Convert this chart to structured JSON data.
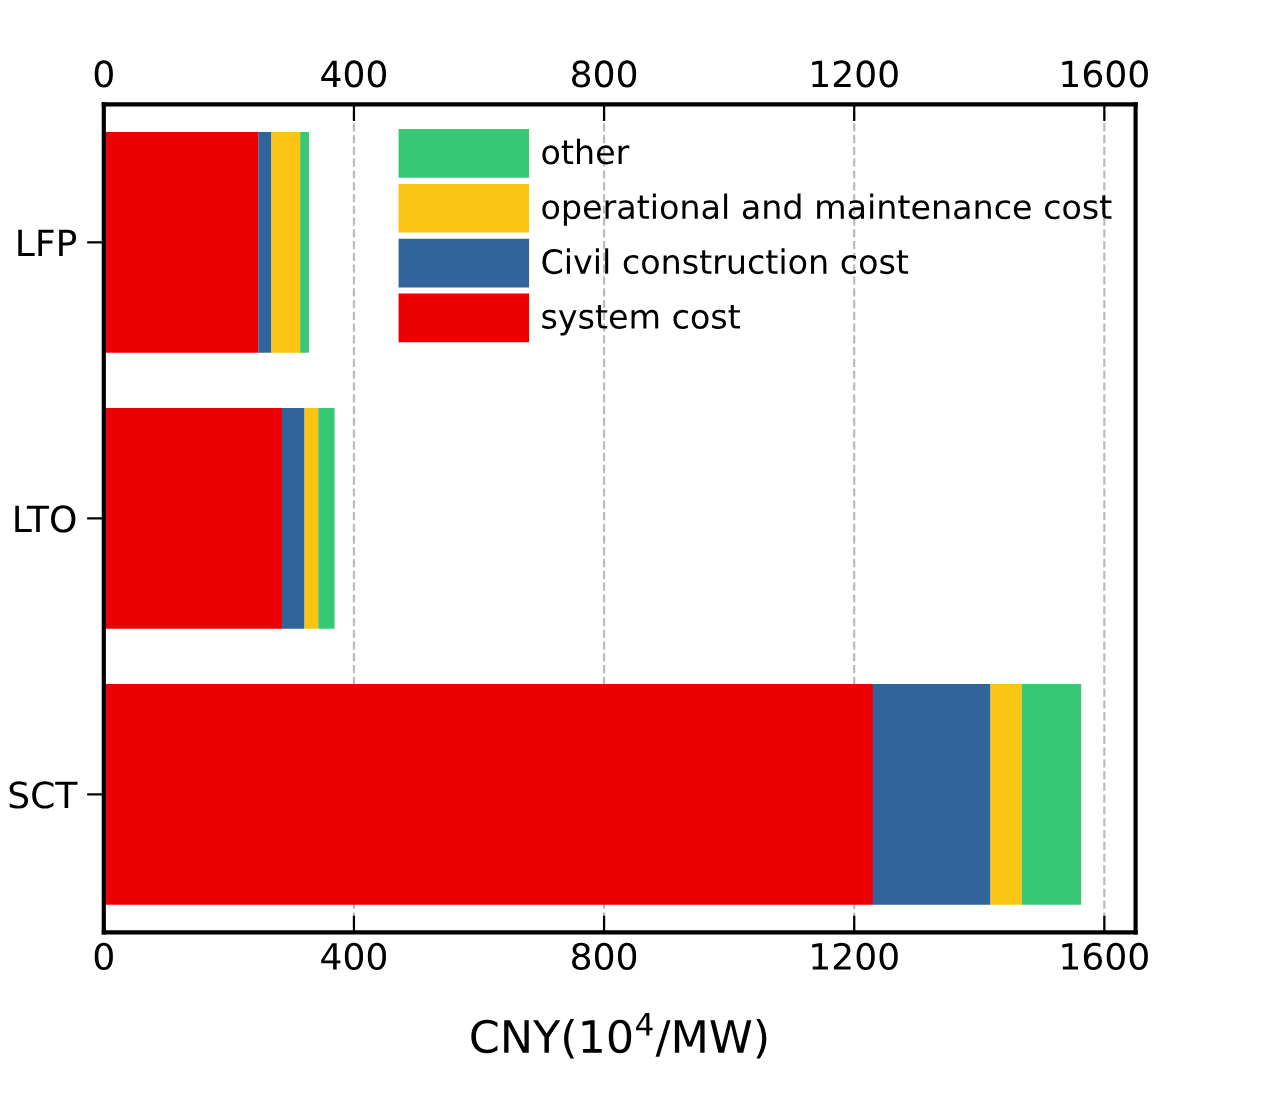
{
  "chart_data": {
    "type": "bar",
    "orientation": "horizontal",
    "stacked": true,
    "categories": [
      "LFP",
      "LTO",
      "SCT"
    ],
    "series": [
      {
        "name": "system cost",
        "color": "#ec0000",
        "values": [
          247,
          285,
          1230
        ]
      },
      {
        "name": "Civil construction cost",
        "color": "#31649b",
        "values": [
          21,
          36,
          188
        ]
      },
      {
        "name": "operational and maintenance cost",
        "color": "#fdc513",
        "values": [
          46,
          22,
          50
        ]
      },
      {
        "name": "other",
        "color": "#38c774",
        "values": [
          14,
          26,
          95
        ]
      }
    ],
    "xlabel": "CNY(10$^{4}$/MW)",
    "xlim": [
      0,
      1650
    ],
    "xticks": [
      0,
      400,
      800,
      1200,
      1600
    ],
    "x2lim": [
      0,
      1650
    ],
    "x2ticks": [
      0,
      400,
      800,
      1200,
      1600
    ],
    "grid": "x",
    "legend": "top right"
  }
}
